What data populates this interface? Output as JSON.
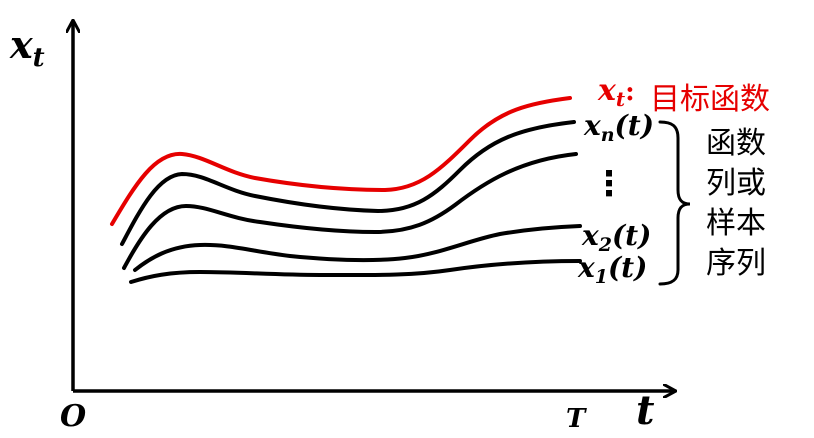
{
  "axes": {
    "y_label_base": "x",
    "y_label_sub": "t",
    "x_label": "t",
    "origin_label": "O",
    "t_end_label": "T"
  },
  "target": {
    "symbol_base": "x",
    "symbol_sub": "t",
    "separator": ":",
    "text": "目标函数",
    "color": "#e60000"
  },
  "curve_labels": {
    "xn": {
      "base": "x",
      "sub": "n",
      "arg": "(t)"
    },
    "dots": "⋮",
    "x2": {
      "base": "x",
      "sub": "2",
      "arg": "(t)"
    },
    "x1": {
      "base": "x",
      "sub": "1",
      "arg": "(t)"
    }
  },
  "brace_label": {
    "line1": "函数",
    "line2": "列或",
    "line3": "样本",
    "line4": "序列"
  },
  "colors": {
    "axis": "#000000",
    "target_curve": "#e60000",
    "sample_curve": "#000000"
  }
}
